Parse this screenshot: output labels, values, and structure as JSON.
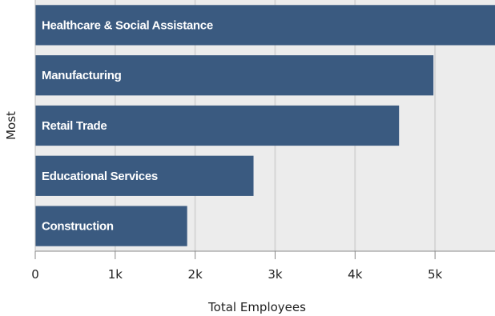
{
  "chart_data": {
    "type": "bar",
    "orientation": "horizontal",
    "categories": [
      "Healthcare & Social Assistance",
      "Manufacturing",
      "Retail Trade",
      "Educational Services",
      "Construction"
    ],
    "values": [
      5750,
      4980,
      4550,
      2730,
      1900
    ],
    "xlabel": "Total Employees",
    "ylabel": "Most",
    "xlim": [
      0,
      5750
    ],
    "x_ticks": [
      "0",
      "1k",
      "2k",
      "3k",
      "4k",
      "5k"
    ],
    "x_tick_values": [
      0,
      1000,
      2000,
      3000,
      4000,
      5000
    ],
    "grid": "vertical",
    "colors": {
      "bar": "#3a5a80",
      "plot_background": "#ececec",
      "grid": "#d6d6d6",
      "axis": "#888888"
    }
  }
}
